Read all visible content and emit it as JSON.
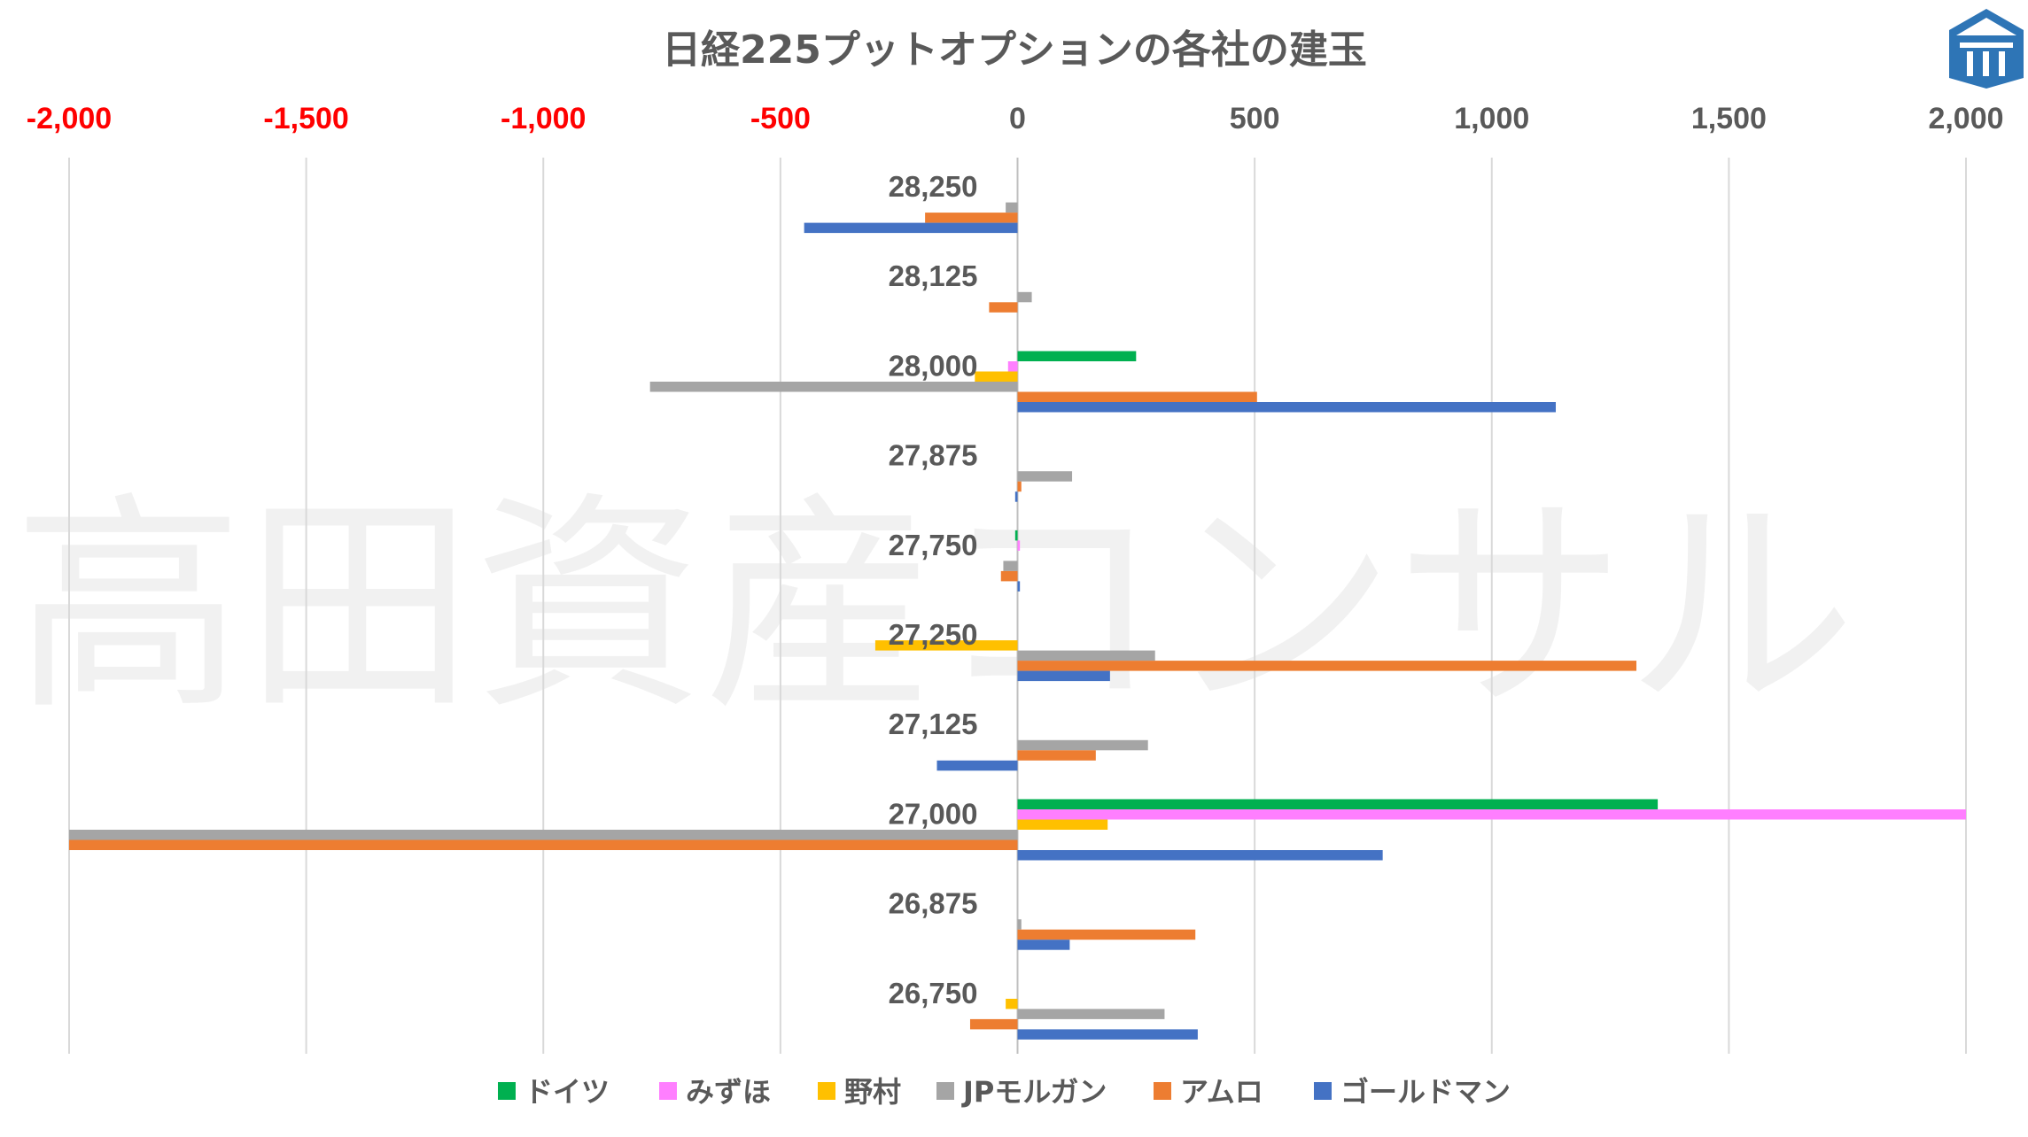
{
  "chart_data": {
    "type": "bar",
    "orientation": "horizontal",
    "title": "日経225プットオプションの各社の建玉",
    "watermark": "高田資産コンサル",
    "xlim": [
      -2000,
      2000
    ],
    "xticks": [
      -2000,
      -1500,
      -1000,
      -500,
      0,
      500,
      1000,
      1500,
      2000
    ],
    "xtick_labels": [
      "-2,000",
      "-1,500",
      "-1,000",
      "-500",
      "0",
      "500",
      "1,000",
      "1,500",
      "2,000"
    ],
    "negative_tick_color": "#FF0000",
    "positive_tick_color": "#595959",
    "grid": "vertical",
    "legend_position": "bottom",
    "categories": [
      "28,250",
      "28,125",
      "28,000",
      "27,875",
      "27,750",
      "27,250",
      "27,125",
      "27,000",
      "26,875",
      "26,750"
    ],
    "series": [
      {
        "name": "ドイツ",
        "color": "#00B050",
        "values": [
          0,
          0,
          250,
          0,
          -5,
          0,
          0,
          1350,
          0,
          0
        ]
      },
      {
        "name": "みずほ",
        "color": "#FF7FFF",
        "values": [
          0,
          0,
          -20,
          0,
          5,
          0,
          0,
          2000,
          0,
          0
        ]
      },
      {
        "name": "野村",
        "color": "#FFC000",
        "values": [
          0,
          0,
          -90,
          0,
          0,
          -300,
          0,
          190,
          0,
          -25
        ]
      },
      {
        "name": "JPモルガン",
        "color": "#A5A5A5",
        "values": [
          -25,
          30,
          -775,
          115,
          -30,
          290,
          275,
          -2000,
          8,
          310
        ]
      },
      {
        "name": "アムロ",
        "color": "#ED7D31",
        "values": [
          -195,
          -60,
          505,
          8,
          -35,
          1305,
          165,
          -2000,
          375,
          -100
        ]
      },
      {
        "name": "ゴールドマン",
        "color": "#4472C4",
        "values": [
          -450,
          0,
          1135,
          -5,
          5,
          195,
          -170,
          770,
          110,
          380
        ]
      }
    ]
  },
  "logo": {
    "icon": "pillar-building-logo-icon",
    "color": "#2E75B6"
  }
}
